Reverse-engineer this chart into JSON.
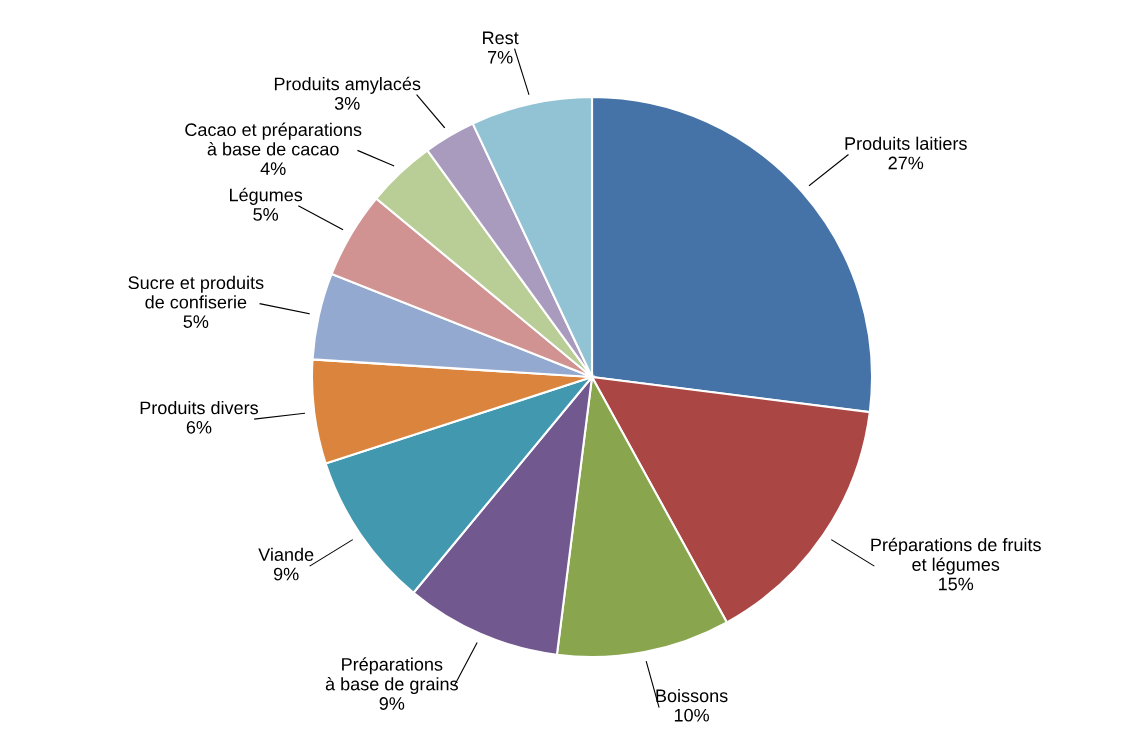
{
  "chart_data": {
    "type": "pie",
    "categories": [
      "Produits laitiers",
      "Préparations de fruits\net légumes",
      "Boissons",
      "Préparations\nà base de grains",
      "Viande",
      "Produits divers",
      "Sucre et produits\nde confiserie",
      "Légumes",
      "Cacao et préparations\nà base de cacao",
      "Produits amylacés",
      "Rest"
    ],
    "values": [
      27,
      15,
      10,
      9,
      9,
      6,
      5,
      5,
      4,
      3,
      7
    ],
    "value_labels": [
      "27%",
      "15%",
      "10%",
      "9%",
      "9%",
      "6%",
      "5%",
      "5%",
      "4%",
      "3%",
      "7%"
    ],
    "colors": [
      "#4573a7",
      "#aa4644",
      "#89a54e",
      "#71588f",
      "#4298af",
      "#db843d",
      "#93a9cf",
      "#d19392",
      "#b9cd96",
      "#a99bbd",
      "#92c3d4"
    ],
    "legend": false
  }
}
